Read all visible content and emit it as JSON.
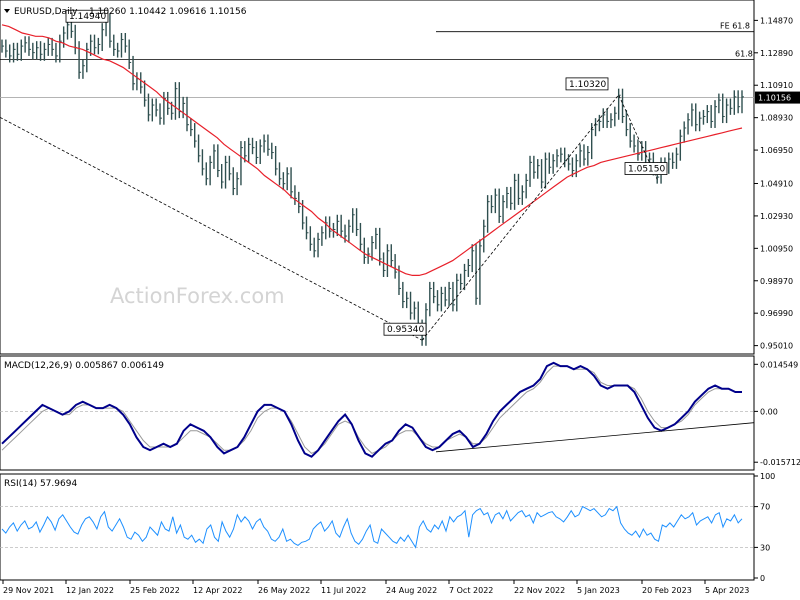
{
  "chart_data": {
    "type": "line",
    "symbol_label": "EURUSD,Daily",
    "ohlc_label": "1.10260 1.10442 1.09616 1.10156",
    "watermark": "ActionForex.com",
    "price_axis": {
      "ticks": [
        "1.14870",
        "1.12890",
        "1.10910",
        "1.08930",
        "1.06950",
        "1.04910",
        "1.02930",
        "1.00950",
        "0.98970",
        "0.96990",
        "0.95010"
      ],
      "range": [
        0.9462,
        1.1587
      ],
      "current_price": "1.10156"
    },
    "x_axis": {
      "ticks": [
        "29 Nov 2021",
        "12 Jan 2022",
        "25 Feb 2022",
        "12 Apr 2022",
        "26 May 2022",
        "11 Jul 2022",
        "24 Aug 2022",
        "7 Oct 2022",
        "22 Nov 2022",
        "5 Jan 2023",
        "20 Feb 2023",
        "5 Apr 2023"
      ]
    },
    "annotations": [
      {
        "text": "1.14940",
        "kind": "swing-high"
      },
      {
        "text": "0.95340",
        "kind": "swing-low"
      },
      {
        "text": "1.10320",
        "kind": "swing-high"
      },
      {
        "text": "1.05150",
        "kind": "swing-low"
      }
    ],
    "levels": [
      {
        "label": "FE 61.8",
        "value": 1.1418
      },
      {
        "label": "61.8",
        "value": 1.1249
      }
    ],
    "price_series": [
      1.133,
      1.13,
      1.127,
      1.131,
      1.128,
      1.133,
      1.135,
      1.131,
      1.129,
      1.132,
      1.128,
      1.131,
      1.134,
      1.131,
      1.127,
      1.136,
      1.141,
      1.146,
      1.142,
      1.132,
      1.117,
      1.121,
      1.131,
      1.136,
      1.132,
      1.134,
      1.143,
      1.149,
      1.136,
      1.131,
      1.13,
      1.137,
      1.133,
      1.123,
      1.11,
      1.113,
      1.108,
      1.1,
      1.091,
      1.097,
      1.094,
      1.089,
      1.101,
      1.095,
      1.092,
      1.107,
      1.093,
      1.098,
      1.085,
      1.082,
      1.075,
      1.066,
      1.058,
      1.052,
      1.062,
      1.069,
      1.057,
      1.05,
      1.062,
      1.055,
      1.046,
      1.052,
      1.071,
      1.066,
      1.073,
      1.071,
      1.065,
      1.072,
      1.075,
      1.07,
      1.068,
      1.058,
      1.052,
      1.049,
      1.055,
      1.044,
      1.04,
      1.035,
      1.025,
      1.019,
      1.012,
      1.008,
      1.015,
      1.019,
      1.025,
      1.02,
      1.021,
      1.026,
      1.02,
      1.017,
      1.023,
      1.03,
      1.021,
      1.012,
      1.004,
      1.006,
      1.013,
      1.018,
      1.003,
      0.996,
      1.008,
      1.002,
      0.995,
      0.985,
      0.977,
      0.979,
      0.97,
      0.973,
      0.962,
      0.954,
      0.972,
      0.985,
      0.98,
      0.975,
      0.982,
      0.978,
      0.985,
      0.975,
      0.99,
      0.988,
      0.996,
      0.999,
      1.008,
      0.979,
      1.011,
      1.023,
      1.038,
      1.035,
      1.042,
      1.029,
      1.038,
      1.043,
      1.037,
      1.051,
      1.04,
      1.044,
      1.051,
      1.062,
      1.056,
      1.06,
      1.05,
      1.064,
      1.059,
      1.063,
      1.066,
      1.067,
      1.063,
      1.061,
      1.057,
      1.063,
      1.069,
      1.064,
      1.068,
      1.082,
      1.085,
      1.087,
      1.091,
      1.087,
      1.088,
      1.092,
      1.103,
      1.09,
      1.082,
      1.075,
      1.072,
      1.067,
      1.071,
      1.061,
      1.064,
      1.058,
      1.053,
      1.061,
      1.059,
      1.064,
      1.062,
      1.067,
      1.078,
      1.083,
      1.088,
      1.094,
      1.085,
      1.089,
      1.09,
      1.093,
      1.087,
      1.096,
      1.1,
      1.09,
      1.097,
      1.095,
      1.102,
      1.096,
      1.102
    ],
    "sma_series": [
      1.146,
      1.145,
      1.143,
      1.141,
      1.14,
      1.139,
      1.139,
      1.138,
      1.136,
      1.135,
      1.133,
      1.132,
      1.131,
      1.129,
      1.127,
      1.125,
      1.124,
      1.122,
      1.12,
      1.117,
      1.114,
      1.111,
      1.108,
      1.105,
      1.101,
      1.098,
      1.095,
      1.092,
      1.089,
      1.086,
      1.083,
      1.08,
      1.077,
      1.073,
      1.07,
      1.067,
      1.064,
      1.061,
      1.058,
      1.054,
      1.051,
      1.048,
      1.045,
      1.041,
      1.038,
      1.035,
      1.032,
      1.028,
      1.025,
      1.021,
      1.018,
      1.015,
      1.012,
      1.009,
      1.006,
      1.004,
      1.002,
      1.0,
      0.998,
      0.996,
      0.994,
      0.993,
      0.993,
      0.994,
      0.996,
      0.998,
      1.0,
      1.002,
      1.005,
      1.008,
      1.011,
      1.014,
      1.017,
      1.02,
      1.023,
      1.026,
      1.029,
      1.032,
      1.035,
      1.038,
      1.041,
      1.044,
      1.047,
      1.05,
      1.053,
      1.055,
      1.057,
      1.059,
      1.06,
      1.062,
      1.063,
      1.064,
      1.065,
      1.066,
      1.067,
      1.068,
      1.069,
      1.07,
      1.071,
      1.072,
      1.073,
      1.074,
      1.075,
      1.076,
      1.077,
      1.078,
      1.079,
      1.08,
      1.081,
      1.082,
      1.083
    ],
    "macd": {
      "label": "MACD(12,26,9) 0.005867 0.006149",
      "ticks": [
        "0.014549",
        "0.00",
        "-0.015712"
      ],
      "range": [
        -0.0175,
        0.0165
      ],
      "line": [
        -0.01,
        -0.008,
        -0.006,
        -0.004,
        -0.002,
        0.0,
        0.002,
        0.001,
        0.0,
        -0.001,
        0.0,
        0.002,
        0.003,
        0.002,
        0.001,
        0.001,
        0.002,
        0.001,
        -0.001,
        -0.004,
        -0.008,
        -0.011,
        -0.012,
        -0.011,
        -0.01,
        -0.011,
        -0.01,
        -0.006,
        -0.004,
        -0.005,
        -0.006,
        -0.008,
        -0.011,
        -0.013,
        -0.012,
        -0.011,
        -0.008,
        -0.004,
        0.0,
        0.002,
        0.002,
        0.001,
        0.0,
        -0.004,
        -0.009,
        -0.013,
        -0.014,
        -0.012,
        -0.009,
        -0.006,
        -0.003,
        -0.001,
        -0.004,
        -0.009,
        -0.013,
        -0.014,
        -0.012,
        -0.01,
        -0.009,
        -0.006,
        -0.004,
        -0.005,
        -0.008,
        -0.011,
        -0.012,
        -0.011,
        -0.009,
        -0.007,
        -0.006,
        -0.008,
        -0.011,
        -0.01,
        -0.007,
        -0.003,
        0.0,
        0.002,
        0.004,
        0.006,
        0.007,
        0.008,
        0.01,
        0.014,
        0.015,
        0.014,
        0.014,
        0.013,
        0.014,
        0.013,
        0.011,
        0.008,
        0.007,
        0.008,
        0.008,
        0.008,
        0.006,
        0.002,
        -0.002,
        -0.005,
        -0.006,
        -0.005,
        -0.004,
        -0.002,
        0.0,
        0.003,
        0.005,
        0.007,
        0.008,
        0.007,
        0.007,
        0.006,
        0.006
      ],
      "signal": [
        -0.012,
        -0.01,
        -0.008,
        -0.006,
        -0.004,
        -0.002,
        0.0,
        0.001,
        0.0,
        -0.001,
        -0.001,
        0.001,
        0.002,
        0.002,
        0.001,
        0.001,
        0.001,
        0.001,
        0.0,
        -0.003,
        -0.006,
        -0.009,
        -0.011,
        -0.011,
        -0.011,
        -0.011,
        -0.01,
        -0.008,
        -0.006,
        -0.006,
        -0.007,
        -0.008,
        -0.01,
        -0.012,
        -0.012,
        -0.011,
        -0.009,
        -0.006,
        -0.002,
        0.0,
        0.001,
        0.001,
        0.0,
        -0.003,
        -0.007,
        -0.011,
        -0.013,
        -0.012,
        -0.01,
        -0.007,
        -0.004,
        -0.003,
        -0.004,
        -0.008,
        -0.011,
        -0.013,
        -0.012,
        -0.011,
        -0.009,
        -0.007,
        -0.006,
        -0.006,
        -0.008,
        -0.01,
        -0.011,
        -0.011,
        -0.009,
        -0.008,
        -0.007,
        -0.008,
        -0.01,
        -0.01,
        -0.008,
        -0.005,
        -0.002,
        0.0,
        0.002,
        0.004,
        0.006,
        0.007,
        0.009,
        0.012,
        0.014,
        0.014,
        0.014,
        0.013,
        0.013,
        0.013,
        0.012,
        0.009,
        0.008,
        0.008,
        0.008,
        0.008,
        0.007,
        0.004,
        0.0,
        -0.003,
        -0.005,
        -0.005,
        -0.004,
        -0.003,
        -0.001,
        0.002,
        0.004,
        0.006,
        0.007,
        0.007,
        0.007,
        0.006,
        0.006
      ],
      "trendline": [
        [
          0,
          -0.0125
        ],
        [
          1,
          -0.0035
        ]
      ]
    },
    "rsi": {
      "label": "RSI(14) 57.9694",
      "ticks": [
        "100",
        "70",
        "30",
        "0"
      ],
      "range": [
        0,
        100
      ],
      "values": [
        48,
        44,
        50,
        54,
        46,
        52,
        56,
        48,
        50,
        55,
        45,
        52,
        60,
        55,
        47,
        58,
        62,
        56,
        50,
        45,
        43,
        52,
        58,
        60,
        55,
        48,
        60,
        65,
        50,
        46,
        52,
        58,
        50,
        40,
        38,
        45,
        42,
        36,
        40,
        50,
        46,
        42,
        55,
        48,
        46,
        60,
        44,
        52,
        40,
        38,
        42,
        35,
        38,
        34,
        48,
        52,
        40,
        36,
        55,
        46,
        40,
        48,
        62,
        55,
        60,
        56,
        48,
        55,
        58,
        50,
        46,
        38,
        36,
        40,
        48,
        36,
        38,
        34,
        32,
        35,
        36,
        38,
        48,
        52,
        55,
        46,
        50,
        56,
        44,
        40,
        50,
        58,
        44,
        36,
        33,
        38,
        46,
        52,
        36,
        34,
        48,
        44,
        40,
        36,
        34,
        40,
        36,
        42,
        36,
        30,
        50,
        56,
        48,
        45,
        52,
        48,
        56,
        46,
        60,
        55,
        60,
        62,
        66,
        40,
        62,
        66,
        68,
        62,
        64,
        54,
        62,
        64,
        58,
        66,
        56,
        60,
        64,
        66,
        60,
        62,
        54,
        64,
        60,
        62,
        64,
        65,
        60,
        58,
        55,
        60,
        66,
        60,
        62,
        70,
        68,
        66,
        68,
        64,
        60,
        62,
        68,
        66,
        70,
        54,
        48,
        44,
        42,
        46,
        40,
        48,
        42,
        44,
        38,
        36,
        52,
        50,
        54,
        50,
        56,
        62,
        58,
        60,
        64,
        52,
        56,
        58,
        60,
        54,
        62,
        64,
        50,
        58,
        56,
        62,
        54,
        58
      ]
    }
  }
}
